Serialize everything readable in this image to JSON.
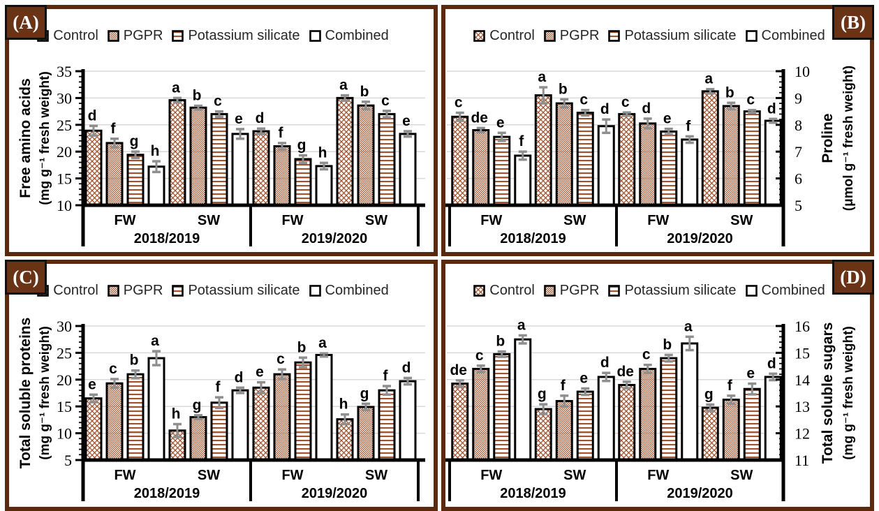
{
  "legend": [
    "Control",
    "PGPR",
    "Potassium silicate",
    "Combined"
  ],
  "colors": {
    "pattern_brown": "#A0522D",
    "panel_border_brown": "#5B2A0E",
    "label_box_brown": "#6B3315",
    "error_bar_gray": "#8F8F8F",
    "gridline_gray": "#D9D9D9",
    "text_dark": "#262626",
    "axis_black": "#000000",
    "bar_fill_white": "#FFFFFF"
  },
  "chart_data": [
    {
      "type": "bar",
      "panel_label": "(A)",
      "panel_corner": "left",
      "axis_side": "left",
      "title": "Free amino acids",
      "unit": "(mg g⁻¹ fresh weight)",
      "ylim": [
        10,
        35
      ],
      "ytick_step": 5,
      "minor_step": 1,
      "group_labels": [
        "FW",
        "SW",
        "FW",
        "SW"
      ],
      "season_labels": [
        "2018/2019",
        "2019/2020"
      ],
      "legend_position": "top",
      "series": [
        {
          "name": "Control",
          "pattern": "crosshatch",
          "values": [
            23.9,
            29.6,
            23.8,
            30.0
          ],
          "errors": [
            0.9,
            0.4,
            0.5,
            0.5
          ],
          "letters": [
            "d",
            "a",
            "d",
            "a"
          ]
        },
        {
          "name": "PGPR",
          "pattern": "dots",
          "values": [
            21.6,
            28.2,
            21.0,
            28.6
          ],
          "errors": [
            0.8,
            0.35,
            0.6,
            0.7
          ],
          "letters": [
            "f",
            "b",
            "f",
            "b"
          ]
        },
        {
          "name": "Potassium silicate",
          "pattern": "hlines",
          "values": [
            19.4,
            27.0,
            18.6,
            27.0
          ],
          "errors": [
            0.6,
            0.5,
            0.7,
            0.6
          ],
          "letters": [
            "g",
            "c",
            "g",
            "c"
          ]
        },
        {
          "name": "Combined",
          "pattern": "solid",
          "values": [
            17.2,
            23.3,
            17.3,
            23.3
          ],
          "errors": [
            1.0,
            0.9,
            0.6,
            0.5
          ],
          "letters": [
            "h",
            "e",
            "h",
            "e"
          ]
        }
      ]
    },
    {
      "type": "bar",
      "panel_label": "(B)",
      "panel_corner": "right",
      "axis_side": "right",
      "title": "Proline",
      "unit": "(μmol g⁻¹ fresh weight)",
      "ylim": [
        5,
        10
      ],
      "ytick_step": 1,
      "minor_step": 0.2,
      "group_labels": [
        "FW",
        "SW",
        "FW",
        "SW"
      ],
      "season_labels": [
        "2018/2019",
        "2019/2020"
      ],
      "legend_position": "top",
      "series": [
        {
          "name": "Control",
          "pattern": "crosshatch",
          "values": [
            8.3,
            9.1,
            8.4,
            9.25
          ],
          "errors": [
            0.15,
            0.3,
            0.06,
            0.08
          ],
          "letters": [
            "c",
            "a",
            "c",
            "a"
          ]
        },
        {
          "name": "PGPR",
          "pattern": "dots",
          "values": [
            7.8,
            8.8,
            8.05,
            8.7
          ],
          "errors": [
            0.08,
            0.15,
            0.18,
            0.12
          ],
          "letters": [
            "de",
            "b",
            "d",
            "b"
          ]
        },
        {
          "name": "Potassium silicate",
          "pattern": "hlines",
          "values": [
            7.55,
            8.45,
            7.75,
            8.5
          ],
          "errors": [
            0.15,
            0.1,
            0.1,
            0.05
          ],
          "letters": [
            "e",
            "c",
            "e",
            "c"
          ]
        },
        {
          "name": "Combined",
          "pattern": "solid",
          "values": [
            6.85,
            7.95,
            7.45,
            8.15
          ],
          "errors": [
            0.15,
            0.25,
            0.12,
            0.07
          ],
          "letters": [
            "f",
            "d",
            "f",
            "d"
          ]
        }
      ]
    },
    {
      "type": "bar",
      "panel_label": "(C)",
      "panel_corner": "left",
      "axis_side": "left",
      "title": "Total soluble proteins",
      "unit": "(mg g⁻¹ fresh weight)",
      "ylim": [
        5,
        30
      ],
      "ytick_step": 5,
      "minor_step": 1,
      "group_labels": [
        "FW",
        "SW",
        "FW",
        "SW"
      ],
      "season_labels": [
        "2018/2019",
        "2019/2020"
      ],
      "legend_position": "top",
      "series": [
        {
          "name": "Control",
          "pattern": "crosshatch",
          "values": [
            16.5,
            10.5,
            18.5,
            12.6
          ],
          "errors": [
            0.7,
            1.2,
            1.0,
            0.9
          ],
          "letters": [
            "e",
            "h",
            "e",
            "h"
          ]
        },
        {
          "name": "PGPR",
          "pattern": "dots",
          "values": [
            19.3,
            13.0,
            21.0,
            14.9
          ],
          "errors": [
            0.8,
            0.35,
            0.9,
            0.6
          ],
          "letters": [
            "c",
            "g",
            "c",
            "g"
          ]
        },
        {
          "name": "Potassium silicate",
          "pattern": "hlines",
          "values": [
            21.0,
            15.7,
            23.2,
            18.0
          ],
          "errors": [
            0.7,
            1.0,
            0.9,
            0.8
          ],
          "letters": [
            "b",
            "f",
            "b",
            "f"
          ]
        },
        {
          "name": "Combined",
          "pattern": "solid",
          "values": [
            24.0,
            18.0,
            24.6,
            19.7
          ],
          "errors": [
            1.3,
            0.5,
            0.3,
            0.6
          ],
          "letters": [
            "a",
            "d",
            "a",
            "d"
          ]
        }
      ]
    },
    {
      "type": "bar",
      "panel_label": "(D)",
      "panel_corner": "right",
      "axis_side": "right",
      "title": "Total soluble sugars",
      "unit": "(mg g⁻¹ fresh weight)",
      "ylim": [
        11,
        16
      ],
      "ytick_step": 1,
      "minor_step": 0.2,
      "group_labels": [
        "FW",
        "SW",
        "FW",
        "SW"
      ],
      "season_labels": [
        "2018/2019",
        "2019/2020"
      ],
      "legend_position": "top",
      "series": [
        {
          "name": "Control",
          "pattern": "crosshatch",
          "values": [
            13.85,
            12.9,
            13.8,
            12.95
          ],
          "errors": [
            0.12,
            0.18,
            0.12,
            0.12
          ],
          "letters": [
            "de",
            "g",
            "de",
            "g"
          ]
        },
        {
          "name": "PGPR",
          "pattern": "dots",
          "values": [
            14.4,
            13.2,
            14.4,
            13.25
          ],
          "errors": [
            0.12,
            0.2,
            0.15,
            0.15
          ],
          "letters": [
            "c",
            "f",
            "c",
            "f"
          ]
        },
        {
          "name": "Potassium silicate",
          "pattern": "hlines",
          "values": [
            14.95,
            13.55,
            14.8,
            13.65
          ],
          "errors": [
            0.1,
            0.12,
            0.12,
            0.2
          ],
          "letters": [
            "b",
            "e",
            "b",
            "e"
          ]
        },
        {
          "name": "Combined",
          "pattern": "solid",
          "values": [
            15.5,
            14.1,
            15.35,
            14.1
          ],
          "errors": [
            0.15,
            0.15,
            0.25,
            0.12
          ],
          "letters": [
            "a",
            "d",
            "a",
            "d"
          ]
        }
      ]
    }
  ]
}
